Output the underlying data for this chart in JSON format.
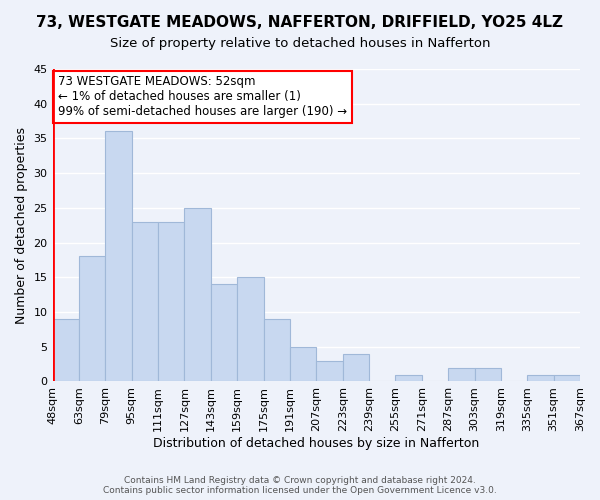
{
  "title": "73, WESTGATE MEADOWS, NAFFERTON, DRIFFIELD, YO25 4LZ",
  "subtitle": "Size of property relative to detached houses in Nafferton",
  "xlabel": "Distribution of detached houses by size in Nafferton",
  "ylabel": "Number of detached properties",
  "bar_values": [
    9,
    18,
    36,
    23,
    23,
    25,
    14,
    15,
    9,
    5,
    3,
    4,
    0,
    1,
    0,
    2,
    2,
    0,
    1,
    1
  ],
  "bar_labels": [
    "48sqm",
    "63sqm",
    "79sqm",
    "95sqm",
    "111sqm",
    "127sqm",
    "143sqm",
    "159sqm",
    "175sqm",
    "191sqm",
    "207sqm",
    "223sqm",
    "239sqm",
    "255sqm",
    "271sqm",
    "287sqm",
    "303sqm",
    "319sqm",
    "335sqm",
    "351sqm",
    "367sqm"
  ],
  "bar_color": "#c8d8f0",
  "bar_edge_color": "#a0b8d8",
  "highlight_color": "#ff0000",
  "ylim": [
    0,
    45
  ],
  "yticks": [
    0,
    5,
    10,
    15,
    20,
    25,
    30,
    35,
    40,
    45
  ],
  "annotation_text": "73 WESTGATE MEADOWS: 52sqm\n← 1% of detached houses are smaller (1)\n99% of semi-detached houses are larger (190) →",
  "annotation_box_color": "#ffffff",
  "annotation_box_edge": "#ff0000",
  "footer_line1": "Contains HM Land Registry data © Crown copyright and database right 2024.",
  "footer_line2": "Contains public sector information licensed under the Open Government Licence v3.0.",
  "background_color": "#eef2fa",
  "grid_color": "#ffffff",
  "title_fontsize": 11,
  "subtitle_fontsize": 9.5,
  "axis_label_fontsize": 9,
  "tick_fontsize": 8,
  "annotation_fontsize": 8.5
}
